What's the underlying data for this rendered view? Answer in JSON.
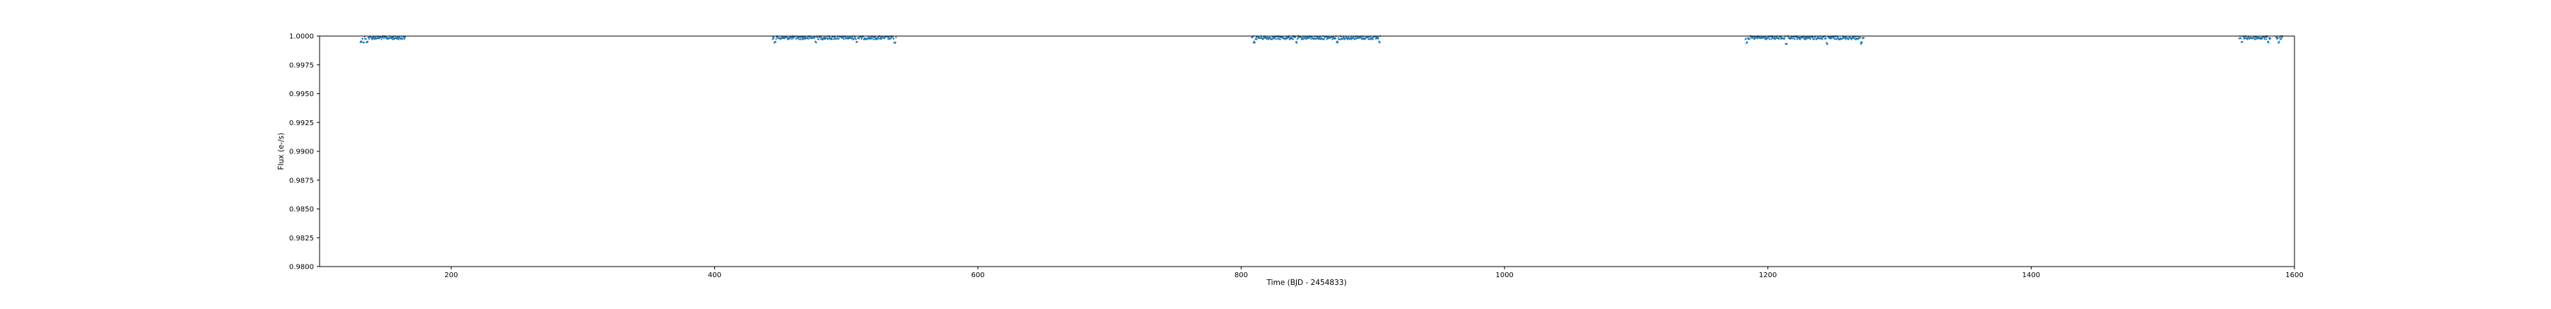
{
  "chart_data": {
    "type": "scatter",
    "title": "",
    "xlabel": "Time (BJD - 2454833)",
    "ylabel": "Flux (e-/s)",
    "xlim": [
      100,
      1600
    ],
    "ylim": [
      0.98,
      1.0
    ],
    "xticks": [
      200,
      400,
      600,
      800,
      1000,
      1200,
      1400,
      1600
    ],
    "yticks": [
      "0.9800",
      "0.9825",
      "0.9850",
      "0.9875",
      "0.9900",
      "0.9925",
      "0.9950",
      "0.9975",
      "1.0000"
    ],
    "grid": false,
    "legend": "none",
    "series": [
      {
        "color": "#1f77b4",
        "marker": "dot",
        "segments": [
          {
            "x_start": 131,
            "x_end": 165,
            "y_base": 0.9997,
            "y_min": 0.9994,
            "dips": [
              131.5,
              133.5,
              136
            ]
          },
          {
            "x_start": 444,
            "x_end": 538,
            "y_base": 0.9997,
            "y_min": 0.9994,
            "dips": [
              446,
              477,
              508,
              537
            ]
          },
          {
            "x_start": 808,
            "x_end": 906,
            "y_base": 0.9997,
            "y_min": 0.9994,
            "dips": [
              810,
              842,
              873,
              905
            ]
          },
          {
            "x_start": 1183,
            "x_end": 1273,
            "y_base": 0.9997,
            "y_min": 0.9993,
            "dips": [
              1184,
              1214,
              1245,
              1271
            ]
          },
          {
            "x_start": 1558,
            "x_end": 1582,
            "y_base": 0.9997,
            "y_min": 0.9994,
            "dips": [
              1560,
              1580
            ]
          },
          {
            "x_start": 1586,
            "x_end": 1591,
            "y_base": 0.9997,
            "y_min": 0.9994,
            "dips": [
              1588
            ]
          }
        ]
      }
    ]
  }
}
